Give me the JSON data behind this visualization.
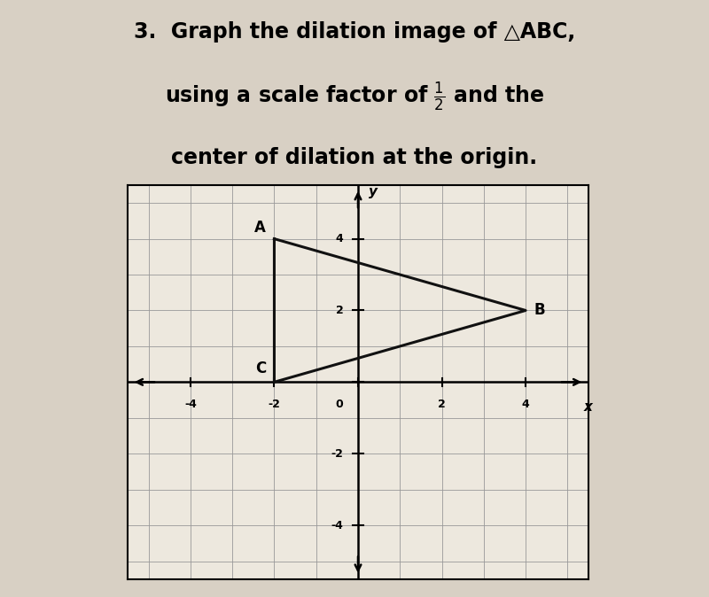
{
  "triangle_ABC": {
    "A": [
      -2,
      4
    ],
    "B": [
      4,
      2
    ],
    "C": [
      -2,
      0
    ]
  },
  "xlim": [
    -5.5,
    5.5
  ],
  "ylim": [
    -5.5,
    5.5
  ],
  "xticks": [
    -4,
    -2,
    0,
    2,
    4
  ],
  "yticks": [
    -4,
    -2,
    0,
    2,
    4
  ],
  "grid_color": "#999999",
  "triangle_color": "#111111",
  "label_fontsize": 12,
  "bg_color": "#f0ece4",
  "figure_bg": "#d8d0c4",
  "graph_bg": "#ede8de"
}
